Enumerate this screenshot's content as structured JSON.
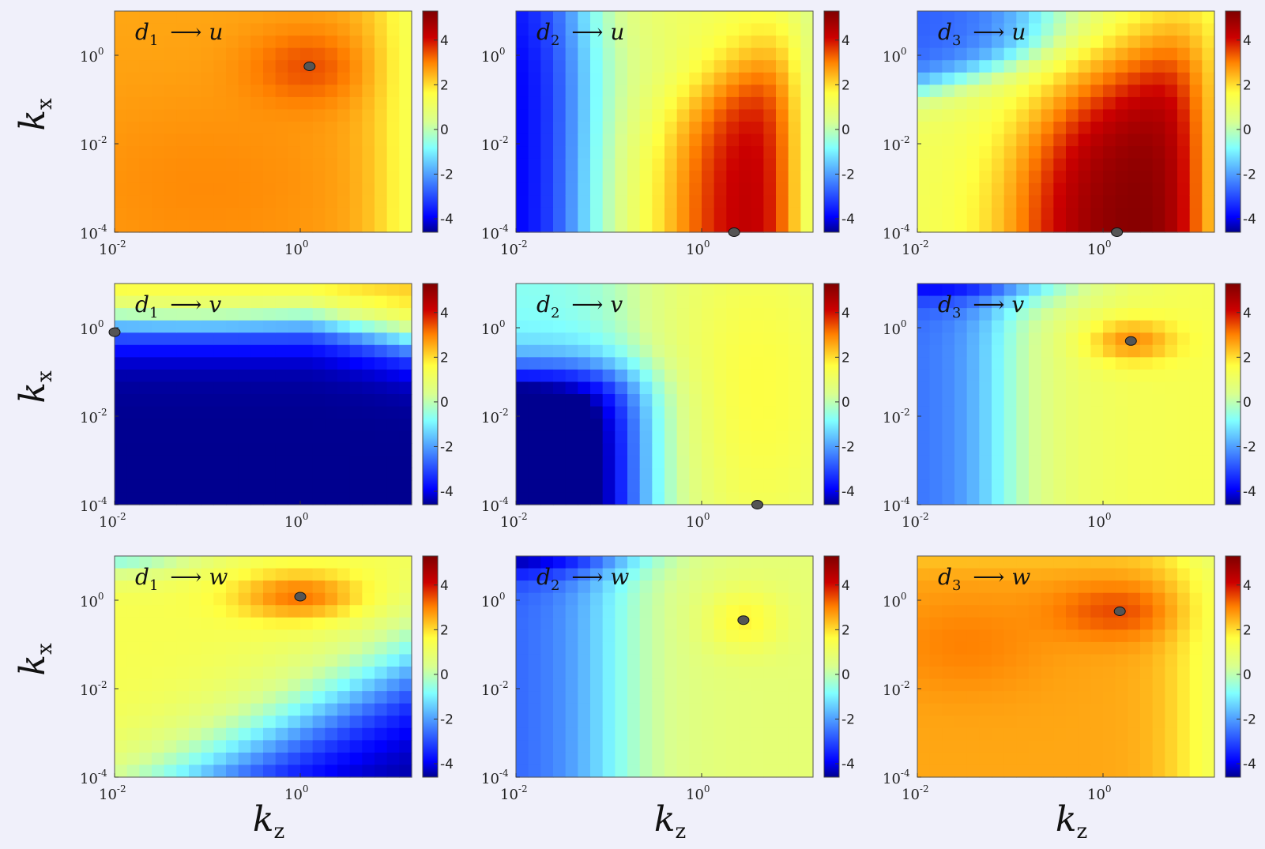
{
  "chart_data": {
    "type": "heatmap",
    "x_axis": {
      "label": "k",
      "label_subscript": "z",
      "scale": "log",
      "range_log10": [
        -2,
        1.2
      ]
    },
    "y_axis": {
      "label": "k",
      "label_subscript": "x",
      "scale": "log",
      "range_log10": [
        -4,
        1
      ]
    },
    "x_ticks": [
      {
        "base": "10",
        "exp": "-2",
        "log": -2
      },
      {
        "base": "10",
        "exp": "0",
        "log": 0
      }
    ],
    "y_ticks": [
      {
        "base": "10",
        "exp": "0",
        "log": 0
      },
      {
        "base": "10",
        "exp": "-2",
        "log": -2
      },
      {
        "base": "10",
        "exp": "-4",
        "log": -4
      }
    ],
    "colorbar": {
      "range": [
        -4.6,
        5.3
      ],
      "ticks": [
        {
          "label": "4",
          "value": 4
        },
        {
          "label": "2",
          "value": 2
        },
        {
          "label": "0",
          "value": 0
        },
        {
          "label": "-2",
          "value": -2
        },
        {
          "label": "-4",
          "value": -4
        }
      ],
      "colors": [
        "#00008f",
        "#0000ff",
        "#80ffff",
        "#ffff40",
        "#ff8000",
        "#cc0000",
        "#7f0000"
      ]
    },
    "panels": [
      {
        "row": 0,
        "col": 0,
        "source": "d",
        "source_index": "1",
        "arrow": "⟶",
        "target": "u",
        "peak": {
          "log_kz": 0.1,
          "log_kx": -0.25
        }
      },
      {
        "row": 0,
        "col": 1,
        "source": "d",
        "source_index": "2",
        "arrow": "⟶",
        "target": "u",
        "peak": {
          "log_kz": 0.35,
          "log_kx": -4
        }
      },
      {
        "row": 0,
        "col": 2,
        "source": "d",
        "source_index": "3",
        "arrow": "⟶",
        "target": "u",
        "peak": {
          "log_kz": 0.15,
          "log_kx": -4
        }
      },
      {
        "row": 1,
        "col": 0,
        "source": "d",
        "source_index": "1",
        "arrow": "⟶",
        "target": "v",
        "peak": {
          "log_kz": -2,
          "log_kx": -0.1
        }
      },
      {
        "row": 1,
        "col": 1,
        "source": "d",
        "source_index": "2",
        "arrow": "⟶",
        "target": "v",
        "peak": {
          "log_kz": 0.6,
          "log_kx": -4
        }
      },
      {
        "row": 1,
        "col": 2,
        "source": "d",
        "source_index": "3",
        "arrow": "⟶",
        "target": "v",
        "peak": {
          "log_kz": 0.3,
          "log_kx": -0.3
        }
      },
      {
        "row": 2,
        "col": 0,
        "source": "d",
        "source_index": "1",
        "arrow": "⟶",
        "target": "w",
        "peak": {
          "log_kz": 0.0,
          "log_kx": 0.08
        }
      },
      {
        "row": 2,
        "col": 1,
        "source": "d",
        "source_index": "2",
        "arrow": "⟶",
        "target": "w",
        "peak": {
          "log_kz": 0.45,
          "log_kx": -0.45
        }
      },
      {
        "row": 2,
        "col": 2,
        "source": "d",
        "source_index": "3",
        "arrow": "⟶",
        "target": "w",
        "peak": {
          "log_kz": 0.18,
          "log_kx": -0.25
        }
      }
    ]
  }
}
